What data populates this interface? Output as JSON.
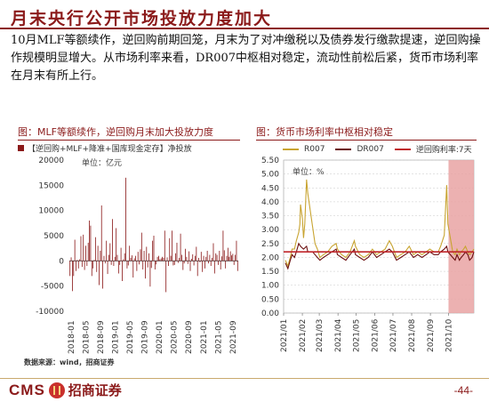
{
  "title": "月末央行公开市场投放力度加大",
  "summary": "10月MLF等额续作，逆回购前期回笼，月末为了对冲缴税以及债券发行缴款提速，逆回购操作规模明显增大。从市场利率来看，DR007中枢相对稳定，流动性前松后紧，货币市场利率在月末有所上行。",
  "source": "数据来源：wind，招商证券",
  "logo": {
    "cms": "CMS",
    "cn": "招商证券"
  },
  "page_number": "-44-",
  "colors": {
    "brand": "#8b1a1a",
    "r007": "#c8a431",
    "dr007": "#6b0f0f",
    "rrp": "#c0262b",
    "highlight": "#e9a3a3"
  },
  "chart_data": [
    {
      "type": "bar",
      "title": "图：MLF等额续作，逆回购月末加大投放力度",
      "legend": [
        "【逆回购+MLF+降准+国库现金定存】净投放"
      ],
      "unit_label": "单位：亿元",
      "ylim": [
        -10000,
        20000
      ],
      "yticks": [
        -10000,
        -5000,
        0,
        5000,
        10000,
        15000,
        20000
      ],
      "xticks": [
        "2018-01",
        "2018-05",
        "2018-09",
        "2019-01",
        "2019-05",
        "2019-09",
        "2020-01",
        "2020-05",
        "2020-09",
        "2021-01",
        "2021-05",
        "2021-09"
      ],
      "x_first": "2018-01",
      "x_last": "2021-10",
      "values": [
        -3000,
        700,
        -6000,
        -3000,
        4200,
        -2000,
        200,
        -1500,
        300,
        4900,
        -1200,
        5200,
        -1800,
        3000,
        -1000,
        3600,
        8000,
        7000,
        -3000,
        -1500,
        200,
        4700,
        -2200,
        3000,
        -4800,
        2000,
        11000,
        -5500,
        1000,
        -500,
        4000,
        -2600,
        1200,
        3500,
        -800,
        8300,
        -1000,
        800,
        6500,
        1200,
        -2500,
        -800,
        2600,
        -4000,
        300,
        1500,
        16500,
        -1500,
        -900,
        3000,
        600,
        1100,
        -3300,
        500,
        1000,
        -2000,
        1800,
        -700,
        2300,
        5600,
        -1700,
        2000,
        -3500,
        2800,
        -1300,
        1500,
        -5100,
        -1400,
        4000,
        5000,
        -1700,
        -700,
        800,
        1000,
        300,
        500,
        800,
        600,
        6000,
        -6200,
        700,
        -1000,
        4500,
        1000,
        6000,
        -900,
        -800,
        1500,
        3600,
        -400,
        600,
        5400,
        1200,
        -1800,
        -500,
        2400,
        800,
        -600,
        1900,
        -2000,
        400,
        1300,
        -900,
        1000,
        2800,
        -3000,
        600,
        -300,
        1800,
        -2200,
        1000,
        -1500,
        800,
        2000,
        -500,
        1200,
        -1000,
        600,
        3500,
        -2500,
        1500,
        1200,
        -800,
        2000,
        -1700,
        900,
        6000,
        2100,
        -1500,
        1000,
        2600,
        800,
        1900,
        1100,
        1400,
        -800,
        1200,
        4000,
        -2000
      ]
    },
    {
      "type": "line",
      "title": "图：货币市场利率中枢相对稳定",
      "legend": [
        "R007",
        "DR007",
        "逆回购利率:7天"
      ],
      "unit_label": "单位：%",
      "ylim": [
        0.0,
        5.5
      ],
      "yticks": [
        0.0,
        0.5,
        1.0,
        1.5,
        2.0,
        2.5,
        3.0,
        3.5,
        4.0,
        4.5,
        5.0,
        5.5
      ],
      "xticks": [
        "2021/01",
        "2021/02",
        "2021/03",
        "2021/04",
        "2021/05",
        "2021/06",
        "2021/07",
        "2021/08",
        "2021/09",
        "2021/10"
      ],
      "x_range": [
        "2021-01-01",
        "2021-11-12"
      ],
      "highlight_range": [
        "2021-10-01",
        "2021-11-12"
      ],
      "series": [
        {
          "name": "R007",
          "points": [
            [
              "2021-01-04",
              1.9
            ],
            [
              "2021-01-08",
              1.7
            ],
            [
              "2021-01-12",
              2.0
            ],
            [
              "2021-01-15",
              2.3
            ],
            [
              "2021-01-19",
              2.3
            ],
            [
              "2021-01-22",
              2.6
            ],
            [
              "2021-01-26",
              2.9
            ],
            [
              "2021-01-28",
              3.2
            ],
            [
              "2021-01-29",
              3.9
            ],
            [
              "2021-02-01",
              3.4
            ],
            [
              "2021-02-03",
              2.7
            ],
            [
              "2021-02-05",
              3.2
            ],
            [
              "2021-02-08",
              4.8
            ],
            [
              "2021-02-10",
              4.3
            ],
            [
              "2021-02-18",
              3.1
            ],
            [
              "2021-02-22",
              2.5
            ],
            [
              "2021-02-26",
              2.3
            ],
            [
              "2021-03-02",
              2.0
            ],
            [
              "2021-03-08",
              2.1
            ],
            [
              "2021-03-15",
              2.2
            ],
            [
              "2021-03-22",
              2.4
            ],
            [
              "2021-03-29",
              2.5
            ],
            [
              "2021-03-31",
              2.3
            ],
            [
              "2021-04-07",
              2.1
            ],
            [
              "2021-04-14",
              2.0
            ],
            [
              "2021-04-21",
              2.2
            ],
            [
              "2021-04-28",
              2.6
            ],
            [
              "2021-04-30",
              2.4
            ],
            [
              "2021-05-07",
              2.1
            ],
            [
              "2021-05-14",
              2.0
            ],
            [
              "2021-05-21",
              2.1
            ],
            [
              "2021-05-28",
              2.3
            ],
            [
              "2021-06-04",
              2.1
            ],
            [
              "2021-06-11",
              2.2
            ],
            [
              "2021-06-18",
              2.3
            ],
            [
              "2021-06-25",
              2.6
            ],
            [
              "2021-06-30",
              2.4
            ],
            [
              "2021-07-07",
              2.0
            ],
            [
              "2021-07-14",
              2.1
            ],
            [
              "2021-07-21",
              2.2
            ],
            [
              "2021-07-28",
              2.4
            ],
            [
              "2021-08-04",
              2.1
            ],
            [
              "2021-08-11",
              2.2
            ],
            [
              "2021-08-18",
              2.1
            ],
            [
              "2021-08-25",
              2.2
            ],
            [
              "2021-08-31",
              2.3
            ],
            [
              "2021-09-07",
              2.2
            ],
            [
              "2021-09-14",
              2.2
            ],
            [
              "2021-09-18",
              2.4
            ],
            [
              "2021-09-24",
              2.8
            ],
            [
              "2021-09-28",
              4.6
            ],
            [
              "2021-09-30",
              3.2
            ],
            [
              "2021-10-08",
              2.2
            ],
            [
              "2021-10-12",
              2.1
            ],
            [
              "2021-10-15",
              2.3
            ],
            [
              "2021-10-19",
              2.1
            ],
            [
              "2021-10-22",
              2.2
            ],
            [
              "2021-10-26",
              2.3
            ],
            [
              "2021-10-29",
              2.4
            ],
            [
              "2021-11-02",
              2.2
            ],
            [
              "2021-11-05",
              2.1
            ],
            [
              "2021-11-09",
              2.2
            ],
            [
              "2021-11-12",
              2.3
            ]
          ]
        },
        {
          "name": "DR007",
          "points": [
            [
              "2021-01-04",
              1.8
            ],
            [
              "2021-01-08",
              1.6
            ],
            [
              "2021-01-12",
              1.9
            ],
            [
              "2021-01-15",
              2.1
            ],
            [
              "2021-01-19",
              2.0
            ],
            [
              "2021-01-22",
              2.2
            ],
            [
              "2021-01-26",
              2.5
            ],
            [
              "2021-01-29",
              2.4
            ],
            [
              "2021-02-03",
              2.3
            ],
            [
              "2021-02-08",
              2.4
            ],
            [
              "2021-02-10",
              2.2
            ],
            [
              "2021-02-18",
              2.2
            ],
            [
              "2021-02-22",
              2.1
            ],
            [
              "2021-02-26",
              2.0
            ],
            [
              "2021-03-02",
              1.9
            ],
            [
              "2021-03-08",
              2.0
            ],
            [
              "2021-03-15",
              2.1
            ],
            [
              "2021-03-22",
              2.2
            ],
            [
              "2021-03-29",
              2.3
            ],
            [
              "2021-03-31",
              2.1
            ],
            [
              "2021-04-07",
              2.0
            ],
            [
              "2021-04-14",
              1.9
            ],
            [
              "2021-04-21",
              2.1
            ],
            [
              "2021-04-28",
              2.3
            ],
            [
              "2021-04-30",
              2.1
            ],
            [
              "2021-05-07",
              2.0
            ],
            [
              "2021-05-14",
              1.9
            ],
            [
              "2021-05-21",
              2.0
            ],
            [
              "2021-05-28",
              2.2
            ],
            [
              "2021-06-04",
              2.0
            ],
            [
              "2021-06-11",
              2.1
            ],
            [
              "2021-06-18",
              2.2
            ],
            [
              "2021-06-25",
              2.3
            ],
            [
              "2021-06-30",
              2.2
            ],
            [
              "2021-07-07",
              1.9
            ],
            [
              "2021-07-14",
              2.0
            ],
            [
              "2021-07-21",
              2.1
            ],
            [
              "2021-07-28",
              2.2
            ],
            [
              "2021-08-04",
              2.0
            ],
            [
              "2021-08-11",
              2.1
            ],
            [
              "2021-08-18",
              2.0
            ],
            [
              "2021-08-25",
              2.1
            ],
            [
              "2021-08-31",
              2.2
            ],
            [
              "2021-09-07",
              2.1
            ],
            [
              "2021-09-14",
              2.1
            ],
            [
              "2021-09-18",
              2.2
            ],
            [
              "2021-09-24",
              2.3
            ],
            [
              "2021-09-28",
              2.4
            ],
            [
              "2021-09-30",
              2.2
            ],
            [
              "2021-10-08",
              2.0
            ],
            [
              "2021-10-12",
              1.9
            ],
            [
              "2021-10-15",
              2.1
            ],
            [
              "2021-10-19",
              1.9
            ],
            [
              "2021-10-22",
              2.0
            ],
            [
              "2021-10-26",
              2.1
            ],
            [
              "2021-10-29",
              2.2
            ],
            [
              "2021-11-02",
              2.1
            ],
            [
              "2021-11-05",
              1.9
            ],
            [
              "2021-11-09",
              2.0
            ],
            [
              "2021-11-12",
              2.2
            ]
          ]
        },
        {
          "name": "逆回购利率:7天",
          "points": [
            [
              "2021-01-01",
              2.2
            ],
            [
              "2021-11-12",
              2.2
            ]
          ]
        }
      ]
    }
  ]
}
